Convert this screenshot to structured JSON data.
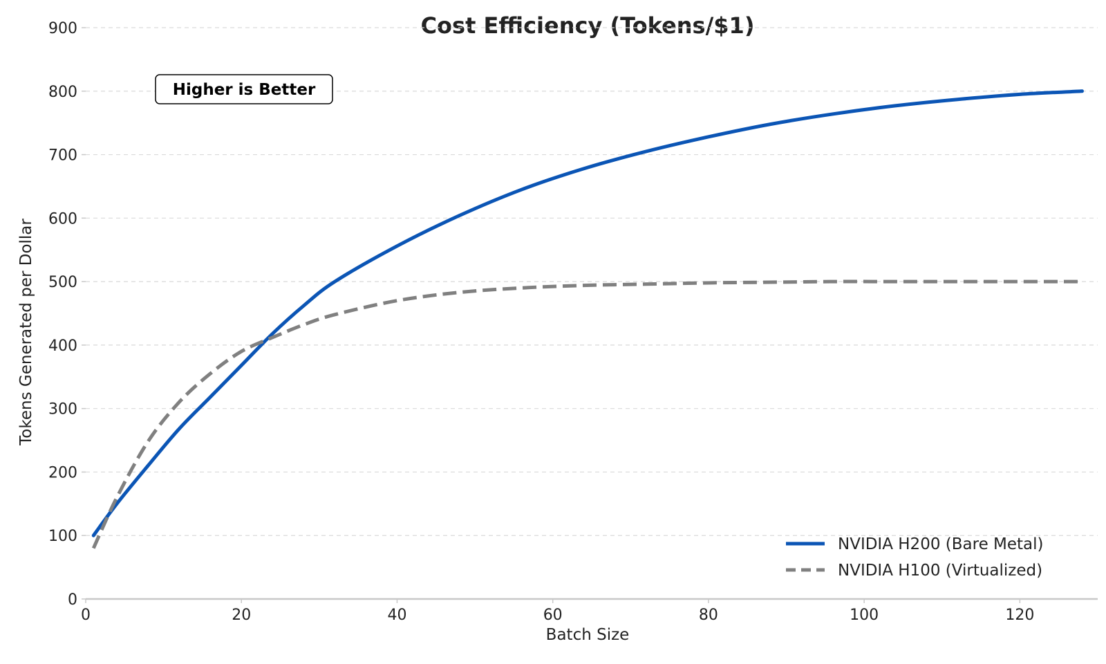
{
  "chart_data": {
    "type": "line",
    "title": "Cost Efficiency (Tokens/$1)",
    "xlabel": "Batch Size",
    "ylabel": "Tokens Generated per Dollar",
    "xlim": [
      0,
      130
    ],
    "ylim": [
      0,
      900
    ],
    "xticks": [
      0,
      20,
      40,
      60,
      80,
      100,
      120
    ],
    "yticks": [
      0,
      100,
      200,
      300,
      400,
      500,
      600,
      700,
      800,
      900
    ],
    "grid": "horizontal dashed",
    "legend_position": "bottom-right",
    "annotation": "Higher is Better",
    "x": [
      1,
      4,
      8,
      12,
      16,
      20,
      24,
      28,
      32,
      40,
      48,
      56,
      64,
      72,
      80,
      88,
      96,
      104,
      112,
      120,
      128
    ],
    "series": [
      {
        "name": "NVIDIA H200 (Bare Metal)",
        "color": "#0b55b5",
        "style": "solid",
        "values": [
          100,
          150,
          210,
          268,
          318,
          368,
          418,
          462,
          500,
          556,
          604,
          645,
          678,
          705,
          728,
          748,
          764,
          777,
          787,
          795,
          800
        ]
      },
      {
        "name": "NVIDIA H100 (Virtualized)",
        "color": "#808080",
        "style": "dashed",
        "values": [
          80,
          160,
          248,
          310,
          355,
          390,
          412,
          432,
          448,
          470,
          483,
          490,
          494,
          496,
          498,
          499,
          500,
          500,
          500,
          500,
          500
        ]
      }
    ]
  }
}
